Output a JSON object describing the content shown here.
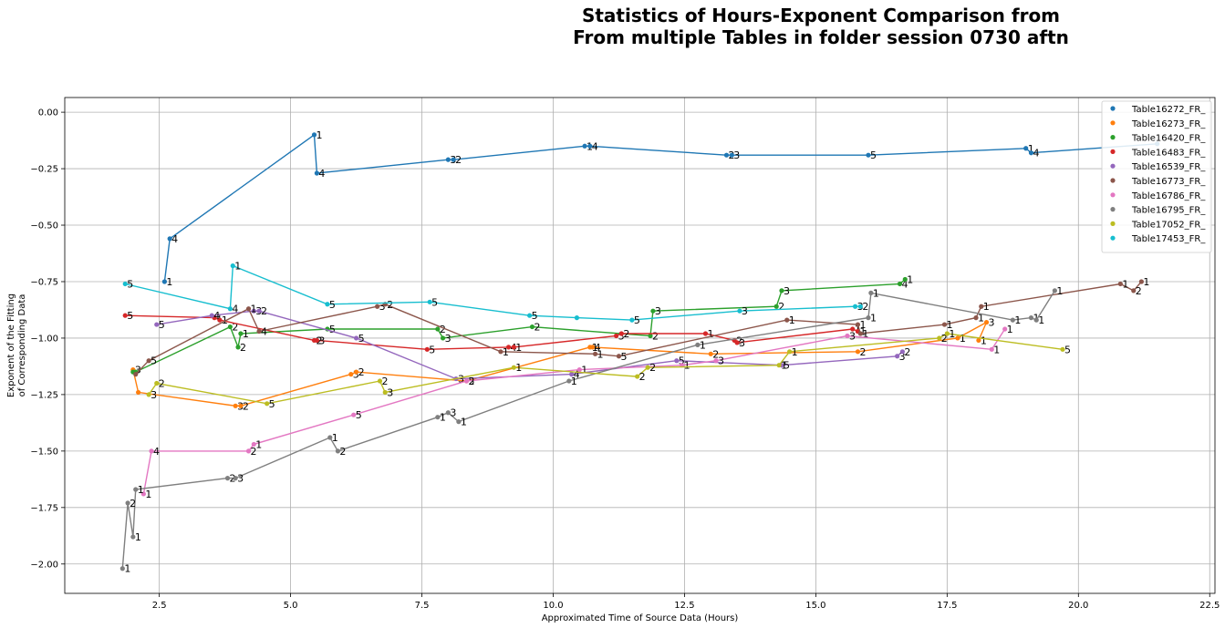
{
  "chart_data": {
    "type": "line",
    "title": "Statistics of Hours-Exponent Comparison from\nFrom multiple Tables in folder session 0730 aftn",
    "xlabel": "Approximated Time of Source Data (Hours)",
    "ylabel": "Exponent of the Fitting\nof Corresponding Data",
    "xlim": [
      0.7,
      22.6
    ],
    "ylim": [
      -2.13,
      0.065
    ],
    "xticks": [
      2.5,
      5.0,
      7.5,
      10.0,
      12.5,
      15.0,
      17.5,
      20.0,
      22.5
    ],
    "xtick_labels": [
      "2.5",
      "5.0",
      "7.5",
      "10.0",
      "12.5",
      "15.0",
      "17.5",
      "20.0",
      "22.5"
    ],
    "yticks": [
      0.0,
      -0.25,
      -0.5,
      -0.75,
      -1.0,
      -1.25,
      -1.5,
      -1.75,
      -2.0
    ],
    "ytick_labels": [
      "0.00",
      "−0.25",
      "−0.50",
      "−0.75",
      "−1.00",
      "−1.25",
      "−1.50",
      "−1.75",
      "−2.00"
    ],
    "grid": true,
    "legend_position": "top-right",
    "series": [
      {
        "name": "Table16272_FR_",
        "color": "#1f77b4",
        "x": [
          2.6,
          2.7,
          5.45,
          5.5,
          8.0,
          8.1,
          10.6,
          10.7,
          13.3,
          13.4,
          16.0,
          19.0,
          19.1,
          21.5
        ],
        "y": [
          -0.75,
          -0.56,
          -0.1,
          -0.27,
          -0.21,
          -0.21,
          -0.15,
          -0.15,
          -0.19,
          -0.19,
          -0.19,
          -0.16,
          -0.18,
          -0.14
        ],
        "labels": [
          "1",
          "4",
          "1",
          "4",
          "3",
          "2",
          "1",
          "4",
          "2",
          "3",
          "5",
          "1",
          "4",
          ""
        ]
      },
      {
        "name": "Table16273_FR_",
        "color": "#ff7f0e",
        "x": [
          2.0,
          2.1,
          3.95,
          4.05,
          6.15,
          6.25,
          8.35,
          10.7,
          10.75,
          13.0,
          15.8,
          17.7,
          18.25,
          18.1
        ],
        "y": [
          -1.14,
          -1.24,
          -1.3,
          -1.3,
          -1.16,
          -1.15,
          -1.19,
          -1.04,
          -1.04,
          -1.07,
          -1.06,
          -1.0,
          -0.93,
          -1.01
        ],
        "labels": [
          "3",
          "",
          "3",
          "2",
          "3",
          "2",
          "5",
          "1",
          "4",
          "2",
          "2",
          "1",
          "3",
          "1"
        ]
      },
      {
        "name": "Table16420_FR_",
        "color": "#2ca02c",
        "x": [
          2.0,
          2.05,
          3.85,
          4.0,
          4.05,
          5.7,
          7.8,
          7.9,
          9.6,
          11.85,
          11.9,
          14.25,
          14.35,
          16.6,
          16.7
        ],
        "y": [
          -1.15,
          -1.15,
          -0.95,
          -1.04,
          -0.98,
          -0.96,
          -0.96,
          -1.0,
          -0.95,
          -0.99,
          -0.88,
          -0.86,
          -0.79,
          -0.76,
          -0.74
        ],
        "labels": [
          "",
          "",
          "2",
          "2",
          "1",
          "5",
          "2",
          "3",
          "2",
          "2",
          "3",
          "2",
          "3",
          "4",
          "1"
        ]
      },
      {
        "name": "Table16483_FR_",
        "color": "#d62728",
        "x": [
          1.85,
          3.55,
          3.65,
          5.45,
          5.5,
          7.6,
          9.15,
          9.25,
          11.2,
          11.3,
          12.9,
          13.45,
          13.5,
          15.7,
          15.8
        ],
        "y": [
          -0.9,
          -0.91,
          -0.92,
          -1.01,
          -1.01,
          -1.05,
          -1.04,
          -1.04,
          -0.99,
          -0.98,
          -0.98,
          -1.01,
          -1.02,
          -0.96,
          -0.97
        ],
        "labels": [
          "5",
          "1",
          "1",
          "2",
          "3",
          "5",
          "4",
          "1",
          "3",
          "2",
          "1",
          "2",
          "3",
          "1",
          "1"
        ]
      },
      {
        "name": "Table16539_FR_",
        "color": "#9467bd",
        "x": [
          2.45,
          3.5,
          4.3,
          4.4,
          6.25,
          8.15,
          10.35,
          12.35,
          14.35,
          16.55,
          16.65
        ],
        "y": [
          -0.94,
          -0.9,
          -0.88,
          -0.88,
          -1.0,
          -1.18,
          -1.16,
          -1.1,
          -1.12,
          -1.08,
          -1.06
        ],
        "labels": [
          "5",
          "4",
          "3",
          "2",
          "5",
          "3",
          "4",
          "5",
          "5",
          "3",
          "2"
        ]
      },
      {
        "name": "Table16773_FR_",
        "color": "#8c564b",
        "x": [
          2.05,
          2.3,
          4.2,
          4.4,
          6.65,
          6.8,
          9.0,
          10.8,
          11.25,
          14.45,
          15.8,
          15.85,
          17.45,
          18.05,
          18.15,
          20.8,
          21.05,
          21.2
        ],
        "y": [
          -1.16,
          -1.1,
          -0.87,
          -0.97,
          -0.86,
          -0.85,
          -1.06,
          -1.07,
          -1.08,
          -0.92,
          -0.94,
          -0.98,
          -0.94,
          -0.91,
          -0.86,
          -0.76,
          -0.79,
          -0.75
        ],
        "labels": [
          "",
          "5",
          "1",
          "4",
          "3",
          "2",
          "1",
          "1",
          "5",
          "1",
          "1",
          "1",
          "1",
          "1",
          "1",
          "1",
          "2",
          "1"
        ]
      },
      {
        "name": "Table16786_FR_",
        "color": "#e377c2",
        "x": [
          2.2,
          2.35,
          4.2,
          4.3,
          6.2,
          8.35,
          10.5,
          12.45,
          13.1,
          15.6,
          18.35,
          18.6
        ],
        "y": [
          -1.69,
          -1.5,
          -1.5,
          -1.47,
          -1.34,
          -1.19,
          -1.14,
          -1.12,
          -1.1,
          -0.99,
          -1.05,
          -0.96
        ],
        "labels": [
          "1",
          "4",
          "2",
          "1",
          "5",
          "2",
          "1",
          "1",
          "3",
          "3",
          "1",
          "1"
        ]
      },
      {
        "name": "Table16795_FR_",
        "color": "#7f7f7f",
        "x": [
          1.8,
          1.9,
          2.0,
          2.05,
          3.8,
          3.95,
          5.75,
          5.9,
          7.8,
          8.0,
          8.2,
          10.3,
          12.75,
          16.0,
          16.05,
          18.75,
          19.1,
          19.2,
          19.55
        ],
        "y": [
          -2.02,
          -1.73,
          -1.88,
          -1.67,
          -1.62,
          -1.62,
          -1.44,
          -1.5,
          -1.35,
          -1.33,
          -1.37,
          -1.19,
          -1.03,
          -0.91,
          -0.8,
          -0.92,
          -0.91,
          -0.92,
          -0.79
        ],
        "labels": [
          "1",
          "2",
          "1",
          "1",
          "2",
          "3",
          "1",
          "2",
          "1",
          "3",
          "1",
          "1",
          "1",
          "1",
          "1",
          "1",
          "1",
          "1",
          "1"
        ]
      },
      {
        "name": "Table17052_FR_",
        "color": "#bcbd22",
        "x": [
          2.3,
          2.45,
          4.55,
          6.7,
          6.8,
          9.25,
          11.6,
          11.8,
          14.3,
          14.5,
          17.35,
          17.5,
          19.7
        ],
        "y": [
          -1.25,
          -1.2,
          -1.29,
          -1.19,
          -1.24,
          -1.13,
          -1.17,
          -1.13,
          -1.12,
          -1.06,
          -1.0,
          -0.98,
          -1.05
        ],
        "labels": [
          "3",
          "2",
          "5",
          "2",
          "3",
          "1",
          "2",
          "2",
          "1",
          "1",
          "2",
          "1",
          "5"
        ]
      },
      {
        "name": "Table17453_FR_",
        "color": "#17becf",
        "x": [
          1.85,
          3.85,
          3.9,
          5.7,
          7.65,
          9.55,
          10.45,
          11.5,
          13.55,
          15.75,
          15.85
        ],
        "y": [
          -0.76,
          -0.87,
          -0.68,
          -0.85,
          -0.84,
          -0.9,
          -0.91,
          -0.92,
          -0.88,
          -0.86,
          -0.86
        ],
        "labels": [
          "5",
          "4",
          "1",
          "5",
          "5",
          "5",
          "",
          "5",
          "3",
          "3",
          "2"
        ]
      }
    ]
  }
}
